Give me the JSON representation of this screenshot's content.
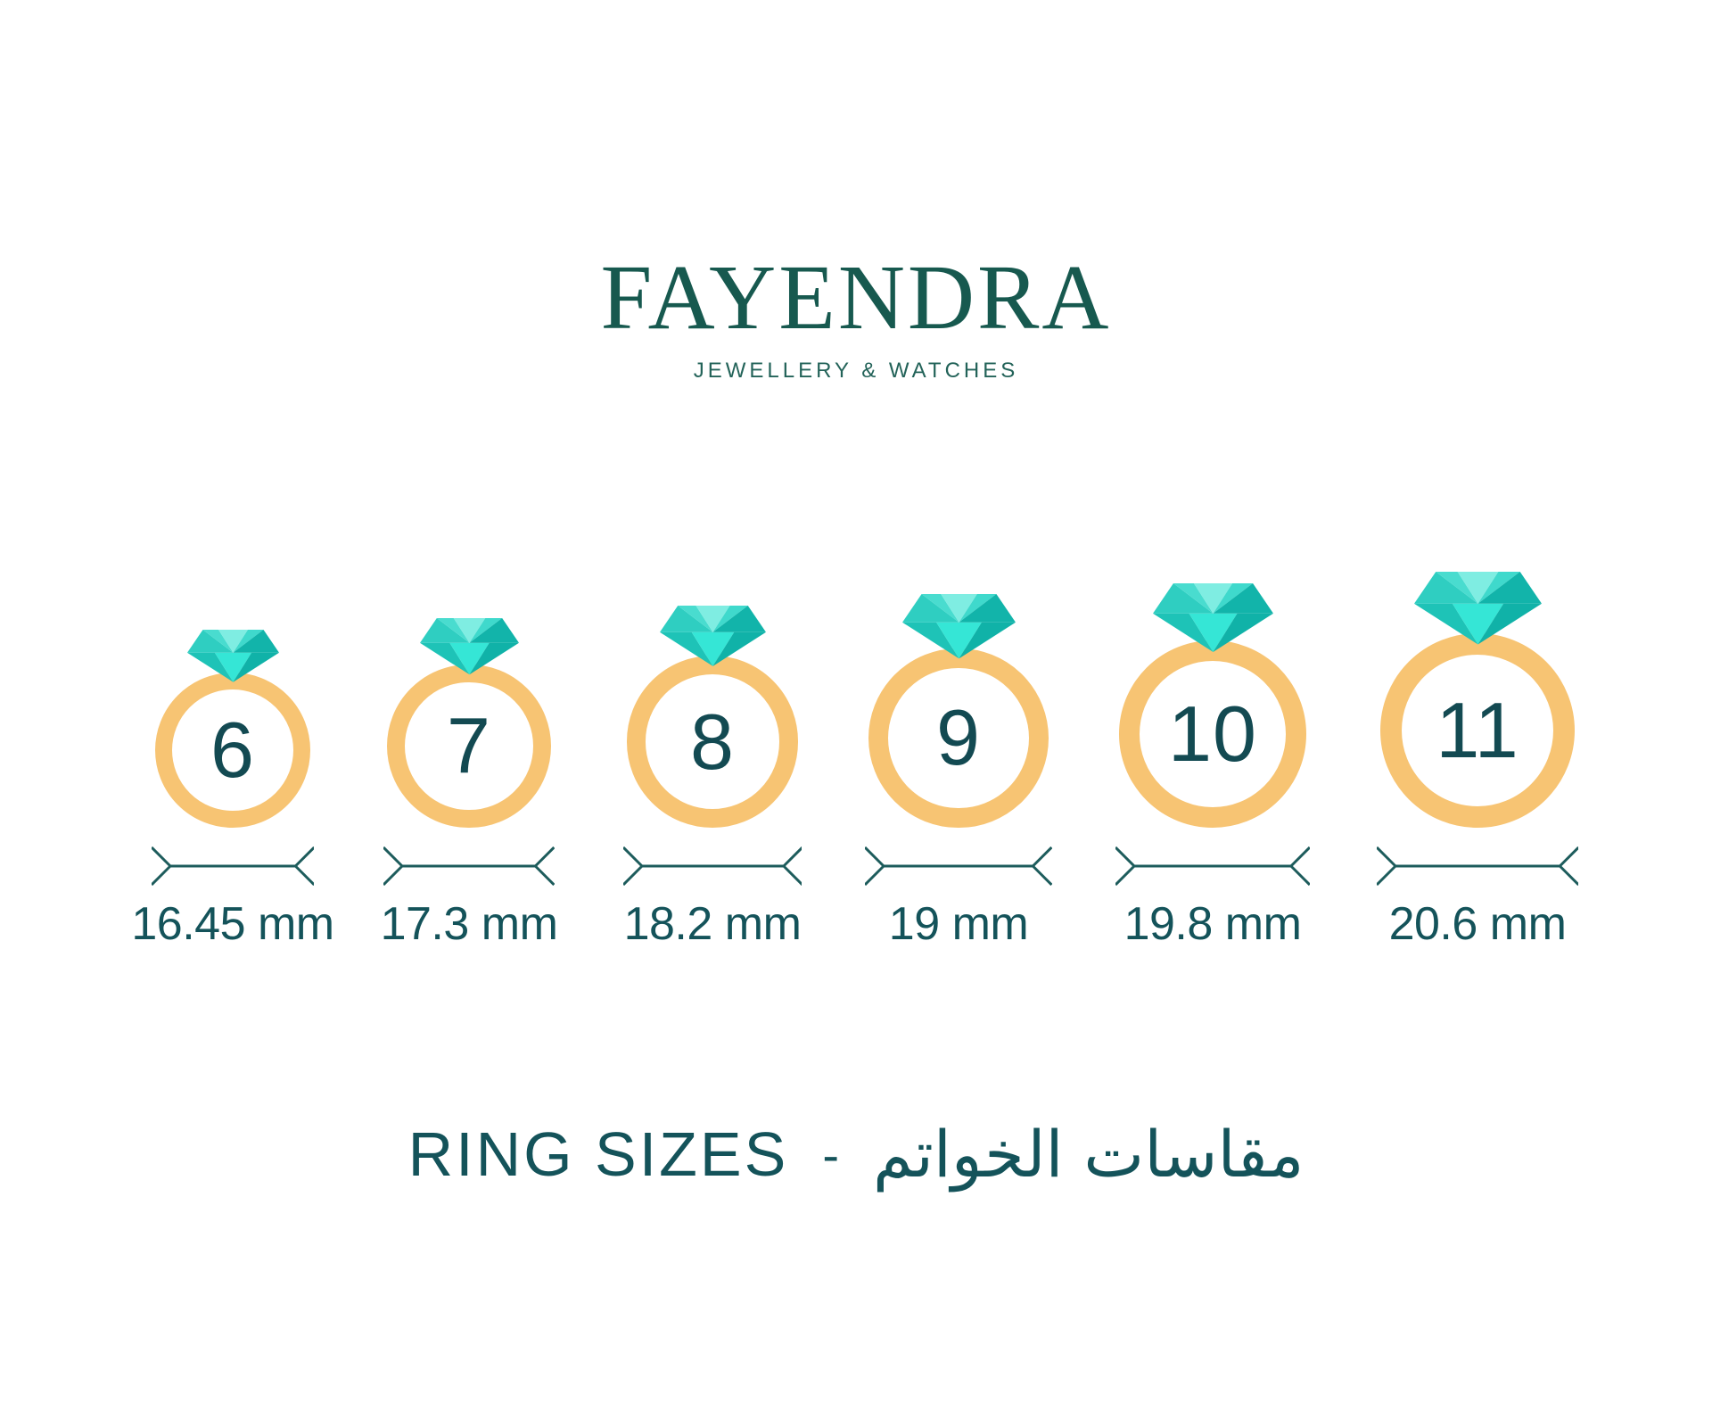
{
  "brand": {
    "name": "FAYENDRA",
    "tagline": "JEWELLERY & WATCHES"
  },
  "title": {
    "en": "RING SIZES",
    "separator": "-",
    "ar": "مقاسات الخواتم"
  },
  "colors": {
    "background": "#FFFFFF",
    "logo_teal": "#17594F",
    "tagline_teal": "#236359",
    "text_teal": "#14535A",
    "number_teal": "#134A52",
    "band_orange": "#F7C473",
    "dimension_line": "#1D5C5C",
    "diamond_facets": {
      "pavilion_left": "#1EC3B7",
      "pavilion_center": "#35E6D6",
      "pavilion_right": "#10B2A8",
      "crown_left_girdle": "#2FCEC1",
      "crown_left": "#49DCCF",
      "crown_center": "#7FEDE2",
      "crown_right": "#3FD9CC",
      "crown_right_girdle": "#12B4AA"
    }
  },
  "chart_data": {
    "type": "table",
    "title": "RING SIZES - مقاسات الخواتم",
    "columns": [
      "us_ring_size",
      "inner_diameter"
    ],
    "rings": [
      {
        "us_size": "6",
        "diameter_label": "16.45 mm",
        "diameter_mm": 16.45
      },
      {
        "us_size": "7",
        "diameter_label": "17.3 mm",
        "diameter_mm": 17.3
      },
      {
        "us_size": "8",
        "diameter_label": "18.2 mm",
        "diameter_mm": 18.2
      },
      {
        "us_size": "9",
        "diameter_label": "19 mm",
        "diameter_mm": 19
      },
      {
        "us_size": "10",
        "diameter_label": "19.8 mm",
        "diameter_mm": 19.8
      },
      {
        "us_size": "11",
        "diameter_label": "20.6 mm",
        "diameter_mm": 20.6
      }
    ]
  }
}
